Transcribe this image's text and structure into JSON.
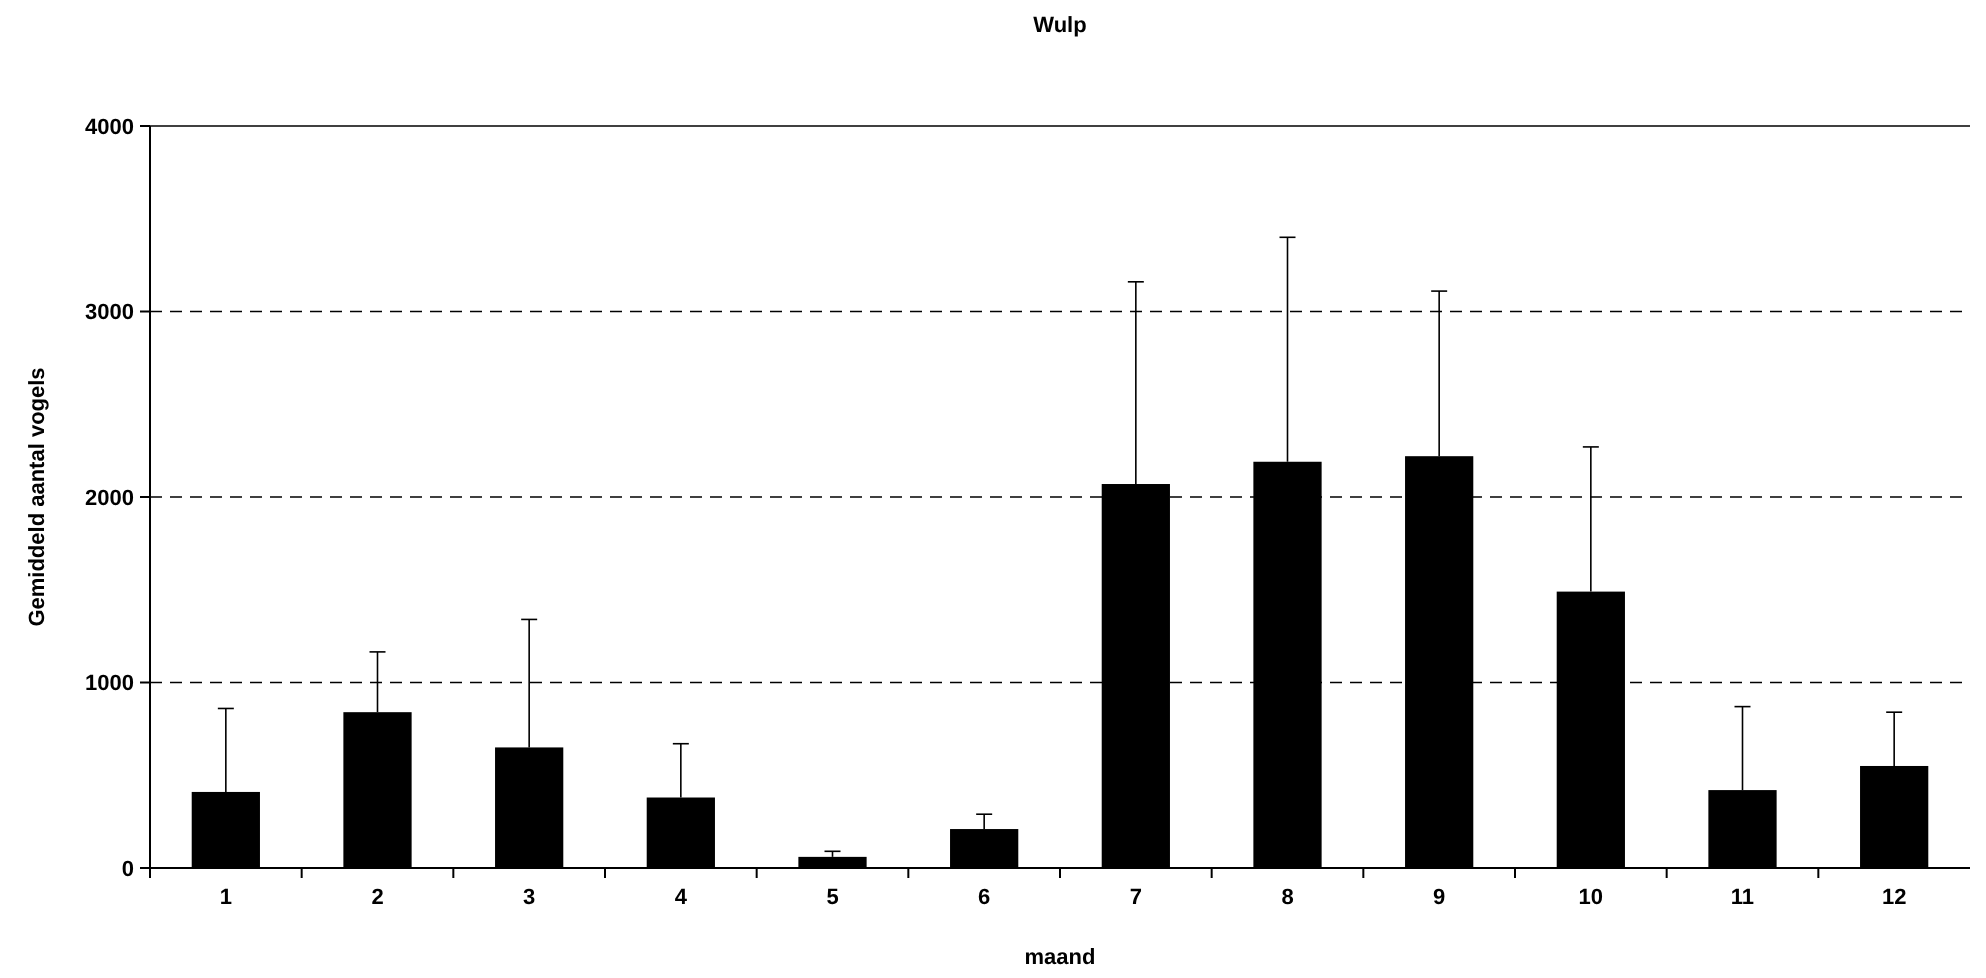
{
  "chart_data": {
    "type": "bar",
    "title": "Wulp",
    "xlabel": "maand",
    "ylabel": "Gemiddeld aantal vogels",
    "categories": [
      "1",
      "2",
      "3",
      "4",
      "5",
      "6",
      "7",
      "8",
      "9",
      "10",
      "11",
      "12"
    ],
    "values": [
      410,
      840,
      650,
      380,
      60,
      210,
      2070,
      2190,
      2220,
      1490,
      420,
      550
    ],
    "errors": [
      [
        410,
        860
      ],
      [
        840,
        1165
      ],
      [
        650,
        1340
      ],
      [
        380,
        670
      ],
      [
        60,
        90
      ],
      [
        210,
        290
      ],
      [
        2070,
        3160
      ],
      [
        2190,
        3400
      ],
      [
        2220,
        3110
      ],
      [
        1490,
        2270
      ],
      [
        420,
        870
      ],
      [
        550,
        840
      ]
    ],
    "color": "#000000",
    "ylim": [
      0,
      4000
    ],
    "yticks": [
      0,
      1000,
      2000,
      3000,
      4000
    ],
    "grid": "y",
    "line_style": "dashed"
  }
}
